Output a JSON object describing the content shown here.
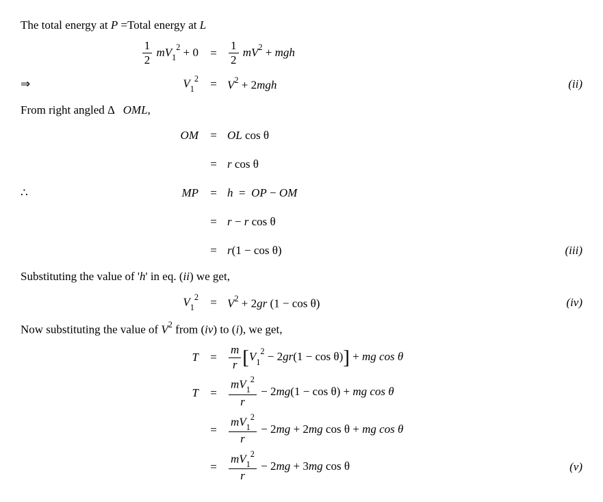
{
  "text": {
    "intro": "The total energy at",
    "P": "P",
    "eqTotalAt": "=Total energy at",
    "L": "L",
    "fromTriangle_pre": "From right angled Δ",
    "OML": "OML",
    "comma": ",",
    "subH_pre": "Substituting the value of '",
    "h": "h",
    "subH_post": "' in eq. (",
    "ii_tag_inline": "ii",
    "we_get": ") we get,",
    "nowSub_pre": "Now substituting the value of ",
    "V": "V",
    "two": "2",
    "nowSub_mid": " from (",
    "iv_tag_inline": "iv",
    "to": ") to (",
    "i_tag_inline": "i",
    "paren_we_get": "), we get,"
  },
  "sym": {
    "half": "1",
    "two": "2",
    "m": "m",
    "V": "V",
    "V1": "V",
    "one": "1",
    "plus0": " + 0",
    "eq": "=",
    "plus": " + ",
    "minus": " − ",
    "minus2": " – ",
    "mgh": "mgh",
    "2mgh": "2mgh",
    "OM": "OM",
    "OL": "OL",
    "cos": " cos θ",
    "r": "r",
    "MP": "MP",
    "h": "h",
    "OP": "OP",
    "r1cos": "(1 − cos θ)",
    "2gr": "2gr",
    "onecos": " (1 − cos θ)",
    "T": "T",
    "mr": "m",
    "overr": "r",
    "bracket_open": "[",
    "bracket_close": "]",
    "mgcos": "mg cos θ",
    "2mg1cos": "2mg(1 − cos θ)",
    "2mg": "2mg",
    "2mgcos": "2mg cos θ",
    "3mgcos": "3mg cos θ",
    "implies": "⇒",
    "therefore": "∴"
  },
  "tags": {
    "ii": "(ii)",
    "iii": "(iii)",
    "iv": "(iv)",
    "v": "(v)"
  }
}
